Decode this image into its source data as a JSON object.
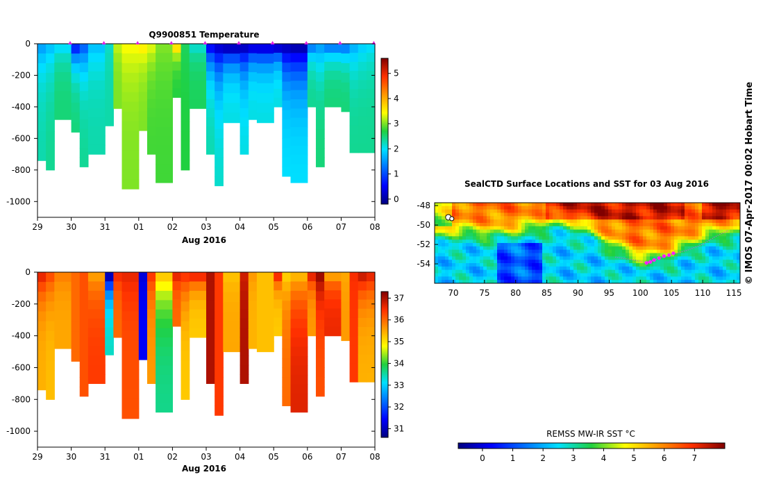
{
  "chart_data": [
    {
      "type": "heatmap",
      "title": "Q9900851  Temperature",
      "xlabel": "Aug 2016",
      "ylabel": "",
      "ylim": [
        -1100,
        0
      ],
      "x_ticks": [
        "29",
        "30",
        "31",
        "01",
        "02",
        "03",
        "04",
        "05",
        "06",
        "07",
        "08"
      ],
      "y_ticks": [
        "0",
        "-200",
        "-400",
        "-600",
        "-800",
        "-1000"
      ],
      "y_tick_values": [
        0,
        -200,
        -400,
        -600,
        -800,
        -1000
      ],
      "colorbar": {
        "ticks": [
          "0",
          "1",
          "2",
          "3",
          "4",
          "5"
        ],
        "range": [
          -0.2,
          5.6
        ]
      },
      "profile_days": [
        0.0,
        0.25,
        0.5,
        1.0,
        1.25,
        1.5,
        2.0,
        2.25,
        2.5,
        3.0,
        3.25,
        3.5,
        4.0,
        4.25,
        4.5,
        5.0,
        5.25,
        5.5,
        6.0,
        6.25,
        6.5,
        7.0,
        7.25,
        7.5,
        8.0,
        8.25,
        8.5,
        9.0,
        9.25,
        9.5,
        9.75
      ],
      "profile_depths": [
        -740,
        -800,
        -480,
        -560,
        -780,
        -700,
        -520,
        -410,
        -920,
        -550,
        -700,
        -880,
        -340,
        -800,
        -410,
        -700,
        -900,
        -500,
        -700,
        -480,
        -500,
        -400,
        -840,
        -880,
        -400,
        -780,
        -400,
        -430,
        -690,
        -690,
        -690
      ],
      "profile_surface_values": [
        1.6,
        1.8,
        2.0,
        0.8,
        1.2,
        1.8,
        2.2,
        3.2,
        3.4,
        3.5,
        3.3,
        3.0,
        3.6,
        2.6,
        2.2,
        0.6,
        0.3,
        0.2,
        0.2,
        0.4,
        0.4,
        0.3,
        0.2,
        0.1,
        1.4,
        1.6,
        1.4,
        1.4,
        1.7,
        1.9,
        2.0
      ],
      "profile_deep_values": [
        2.3,
        2.4,
        2.5,
        2.5,
        2.4,
        2.3,
        2.3,
        3.0,
        3.0,
        3.0,
        2.8,
        2.8,
        2.7,
        2.7,
        2.6,
        2.3,
        2.2,
        2.1,
        2.1,
        2.1,
        2.1,
        2.1,
        2.0,
        2.0,
        2.4,
        2.5,
        2.5,
        2.5,
        2.4,
        2.4,
        2.4
      ],
      "marker_days": [
        0.0,
        1.0,
        2.0,
        3.0,
        4.0,
        5.0,
        6.0,
        7.0,
        8.0,
        9.0,
        10.0
      ]
    },
    {
      "type": "heatmap",
      "title": "",
      "xlabel": "Aug 2016",
      "ylabel": "",
      "ylim": [
        -1100,
        0
      ],
      "x_ticks": [
        "29",
        "30",
        "31",
        "01",
        "02",
        "03",
        "04",
        "05",
        "06",
        "07",
        "08"
      ],
      "y_ticks": [
        "0",
        "-200",
        "-400",
        "-600",
        "-800",
        "-1000"
      ],
      "y_tick_values": [
        0,
        -200,
        -400,
        -600,
        -800,
        -1000
      ],
      "colorbar": {
        "ticks": [
          "31",
          "32",
          "33",
          "34",
          "35",
          "36",
          "37"
        ],
        "range": [
          30.6,
          37.3
        ]
      },
      "profile_days": [
        0.0,
        0.25,
        0.5,
        1.0,
        1.25,
        1.5,
        2.0,
        2.25,
        2.5,
        3.0,
        3.25,
        3.5,
        4.0,
        4.25,
        4.5,
        5.0,
        5.25,
        5.5,
        6.0,
        6.25,
        6.5,
        7.0,
        7.25,
        7.5,
        8.0,
        8.25,
        8.5,
        9.0,
        9.25,
        9.5,
        9.75
      ],
      "profile_depths": [
        -740,
        -800,
        -480,
        -560,
        -780,
        -700,
        -520,
        -410,
        -920,
        -550,
        -700,
        -880,
        -340,
        -800,
        -410,
        -700,
        -900,
        -500,
        -700,
        -480,
        -500,
        -400,
        -840,
        -880,
        -400,
        -780,
        -400,
        -430,
        -690,
        -690,
        -690
      ],
      "profile_surface_values": [
        36.6,
        36.2,
        35.8,
        36.0,
        36.2,
        35.6,
        31.0,
        36.5,
        36.6,
        31.2,
        36.4,
        35.2,
        36.6,
        36.4,
        36.5,
        37.0,
        36.4,
        35.3,
        36.8,
        35.6,
        35.3,
        36.5,
        35.2,
        35.4,
        36.6,
        37.1,
        35.6,
        35.5,
        36.5,
        36.8,
        36.6
      ],
      "profile_deep_values": [
        35.4,
        35.3,
        35.5,
        36.0,
        36.2,
        36.4,
        33.4,
        36.0,
        36.2,
        31.4,
        35.6,
        33.6,
        36.0,
        35.2,
        35.2,
        37.0,
        36.4,
        35.5,
        37.0,
        35.4,
        35.3,
        35.2,
        36.0,
        36.7,
        35.6,
        36.2,
        36.6,
        35.6,
        36.4,
        35.4,
        35.4
      ]
    },
    {
      "type": "heatmap",
      "title": "SealCTD Surface Locations and SST for 03 Aug 2016",
      "xlabel": "",
      "ylabel": "",
      "xlim": [
        67,
        116
      ],
      "ylim": [
        -56,
        -47.7
      ],
      "x_ticks": [
        "70",
        "75",
        "80",
        "85",
        "90",
        "95",
        "100",
        "105",
        "110",
        "115"
      ],
      "x_tick_values": [
        70,
        75,
        80,
        85,
        90,
        95,
        100,
        105,
        110,
        115
      ],
      "y_ticks": [
        "-48",
        "-50",
        "-52",
        "-54"
      ],
      "y_tick_values": [
        -48,
        -50,
        -52,
        -54
      ],
      "colorbar_label": "REMSS MW-IR SST °C",
      "colorbar": {
        "ticks": [
          "0",
          "1",
          "2",
          "3",
          "4",
          "5",
          "6",
          "7"
        ],
        "range": [
          -0.8,
          8.0
        ]
      },
      "track_points": [
        [
          101.0,
          -53.9
        ],
        [
          101.6,
          -53.8
        ],
        [
          102.2,
          -53.6
        ],
        [
          103.0,
          -53.4
        ],
        [
          103.8,
          -53.2
        ],
        [
          104.6,
          -53.1
        ],
        [
          105.3,
          -52.9
        ]
      ],
      "track_dotted": [
        [
          96.0,
          -53.3
        ],
        [
          99.0,
          -53.6
        ],
        [
          101.0,
          -53.9
        ],
        [
          104.0,
          -53.2
        ],
        [
          107.5,
          -52.6
        ],
        [
          110.0,
          -52.0
        ],
        [
          112.0,
          -51.2
        ],
        [
          114.0,
          -50.6
        ]
      ],
      "start_marker": [
        69.2,
        -49.2
      ]
    }
  ],
  "stamp": "© IMOS 07-Apr-2017 00:02 Hobart Time"
}
